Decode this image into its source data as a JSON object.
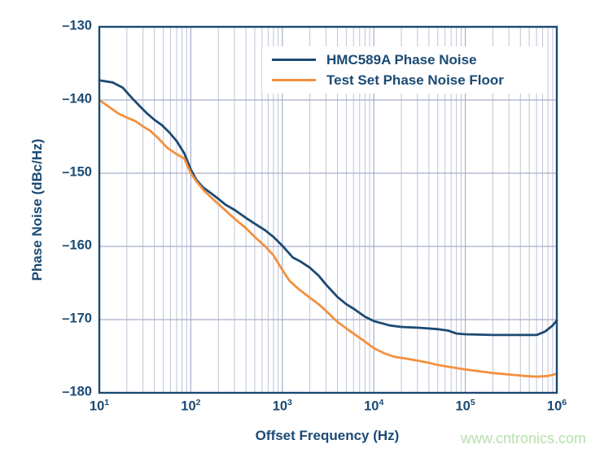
{
  "watermark": "www.cntronics.com",
  "colors": {
    "navy": "#1B4A73",
    "orange": "#F2903E",
    "grid_minor": "#BFC3D6",
    "grid_major": "#A7AEC9",
    "watermark_green": "#B5E0AC",
    "background": "#FFFFFF"
  },
  "chart_data": {
    "type": "line",
    "title": "",
    "xlabel": "Offset Frequency (Hz)",
    "ylabel": "Phase Noise (dBc/Hz)",
    "x_scale": "log",
    "xlim": [
      10,
      1000000
    ],
    "ylim": [
      -180,
      -130
    ],
    "grid": "log minor vertical gridlines; major horizontal gridlines every 10 dB",
    "legend_position": "inside top-right",
    "x_ticks": [
      {
        "text": "10",
        "sup": "1",
        "value": 10
      },
      {
        "text": "10",
        "sup": "2",
        "value": 100
      },
      {
        "text": "10",
        "sup": "3",
        "value": 1000
      },
      {
        "text": "10",
        "sup": "4",
        "value": 10000
      },
      {
        "text": "10",
        "sup": "5",
        "value": 100000
      },
      {
        "text": "10",
        "sup": "6",
        "value": 1000000
      }
    ],
    "y_ticks": [
      {
        "label": "–130",
        "value": -130
      },
      {
        "label": "–140",
        "value": -140
      },
      {
        "label": "–150",
        "value": -150
      },
      {
        "label": "–160",
        "value": -160
      },
      {
        "label": "–170",
        "value": -170
      },
      {
        "label": "–180",
        "value": -180
      }
    ],
    "y_gridlines": [
      -140,
      -150,
      -160,
      -170
    ],
    "series": [
      {
        "name": "HMC589A Phase Noise",
        "color": "#1B4A73",
        "points": [
          [
            10,
            -137.3
          ],
          [
            14,
            -137.6
          ],
          [
            18,
            -138.3
          ],
          [
            23,
            -139.8
          ],
          [
            28,
            -140.9
          ],
          [
            33,
            -141.8
          ],
          [
            40,
            -142.7
          ],
          [
            48,
            -143.4
          ],
          [
            58,
            -144.4
          ],
          [
            70,
            -145.6
          ],
          [
            85,
            -147.3
          ],
          [
            100,
            -149.5
          ],
          [
            115,
            -150.9
          ],
          [
            135,
            -151.9
          ],
          [
            165,
            -152.7
          ],
          [
            200,
            -153.5
          ],
          [
            240,
            -154.3
          ],
          [
            300,
            -155.0
          ],
          [
            400,
            -156.1
          ],
          [
            500,
            -156.9
          ],
          [
            650,
            -157.8
          ],
          [
            800,
            -158.7
          ],
          [
            1000,
            -159.9
          ],
          [
            1300,
            -161.5
          ],
          [
            1600,
            -162.1
          ],
          [
            2000,
            -162.9
          ],
          [
            2500,
            -164.0
          ],
          [
            3000,
            -165.2
          ],
          [
            4000,
            -166.9
          ],
          [
            5000,
            -167.9
          ],
          [
            6000,
            -168.5
          ],
          [
            8000,
            -169.6
          ],
          [
            10000,
            -170.2
          ],
          [
            15000,
            -170.8
          ],
          [
            20000,
            -171.0
          ],
          [
            30000,
            -171.1
          ],
          [
            50000,
            -171.3
          ],
          [
            65000,
            -171.5
          ],
          [
            80000,
            -171.9
          ],
          [
            100000,
            -172.0
          ],
          [
            200000,
            -172.1
          ],
          [
            400000,
            -172.1
          ],
          [
            600000,
            -172.1
          ],
          [
            750000,
            -171.6
          ],
          [
            900000,
            -170.8
          ],
          [
            1000000,
            -170.1
          ]
        ]
      },
      {
        "name": "Test Set Phase Noise Floor",
        "color": "#F2903E",
        "points": [
          [
            10,
            -140.0
          ],
          [
            13,
            -141.0
          ],
          [
            16,
            -141.8
          ],
          [
            20,
            -142.4
          ],
          [
            25,
            -142.9
          ],
          [
            30,
            -143.6
          ],
          [
            36,
            -144.2
          ],
          [
            44,
            -145.2
          ],
          [
            55,
            -146.5
          ],
          [
            70,
            -147.4
          ],
          [
            85,
            -148.0
          ],
          [
            100,
            -150.0
          ],
          [
            115,
            -151.1
          ],
          [
            140,
            -152.4
          ],
          [
            170,
            -153.4
          ],
          [
            200,
            -154.2
          ],
          [
            250,
            -155.3
          ],
          [
            300,
            -156.2
          ],
          [
            400,
            -157.5
          ],
          [
            500,
            -158.7
          ],
          [
            650,
            -160.0
          ],
          [
            800,
            -161.2
          ],
          [
            1000,
            -163.2
          ],
          [
            1200,
            -164.7
          ],
          [
            1500,
            -165.8
          ],
          [
            2000,
            -167.0
          ],
          [
            2500,
            -167.9
          ],
          [
            3000,
            -168.8
          ],
          [
            4000,
            -170.3
          ],
          [
            5000,
            -171.2
          ],
          [
            6500,
            -172.2
          ],
          [
            8000,
            -173.0
          ],
          [
            10000,
            -173.9
          ],
          [
            13000,
            -174.6
          ],
          [
            17000,
            -175.1
          ],
          [
            22000,
            -175.3
          ],
          [
            30000,
            -175.6
          ],
          [
            40000,
            -175.9
          ],
          [
            50000,
            -176.2
          ],
          [
            70000,
            -176.5
          ],
          [
            100000,
            -176.8
          ],
          [
            150000,
            -177.1
          ],
          [
            200000,
            -177.3
          ],
          [
            300000,
            -177.5
          ],
          [
            450000,
            -177.7
          ],
          [
            600000,
            -177.8
          ],
          [
            800000,
            -177.7
          ],
          [
            1000000,
            -177.4
          ]
        ]
      }
    ]
  }
}
